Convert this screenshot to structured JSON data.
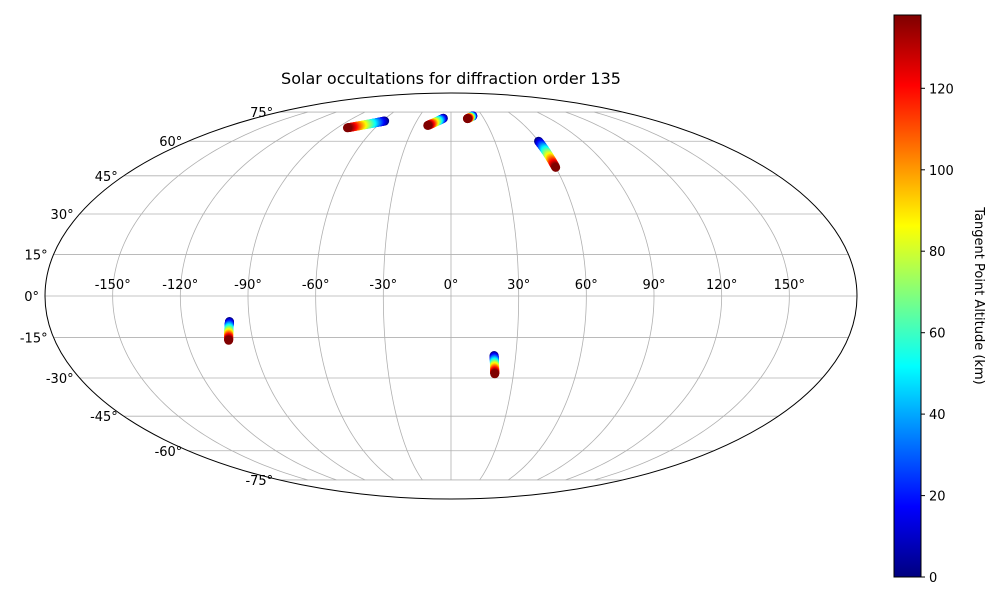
{
  "chart_data": {
    "type": "scatter",
    "projection": "mollweide",
    "title": "Solar occultations for diffraction order 135",
    "longitude_ticks": [
      "-150°",
      "-120°",
      "-90°",
      "-60°",
      "-30°",
      "0°",
      "30°",
      "60°",
      "90°",
      "120°",
      "150°"
    ],
    "latitude_ticks": [
      "-75°",
      "-60°",
      "-45°",
      "-30°",
      "-15°",
      "0°",
      "15°",
      "30°",
      "45°",
      "60°",
      "75°"
    ],
    "grid": true,
    "colormap": "jet",
    "colorbar": {
      "label": "Tangent Point Altitude (km)",
      "range": [
        0,
        138
      ],
      "ticks": [
        "0",
        "20",
        "40",
        "60",
        "80",
        "100",
        "120"
      ]
    },
    "tracks": [
      {
        "lon_start": -82,
        "lat_start": 66.5,
        "lon_end": -58,
        "lat_end": 70.0
      },
      {
        "lon_start": -19,
        "lat_start": 67.7,
        "lon_end": -7,
        "lat_end": 71.5
      },
      {
        "lon_start": 15,
        "lat_start": 71.3,
        "lon_end": 21,
        "lat_end": 72.8
      },
      {
        "lon_start": 60,
        "lat_start": 48.5,
        "lon_end": 60,
        "lat_end": 60.0
      },
      {
        "lon_start": -101,
        "lat_start": -16.0,
        "lon_end": -99,
        "lat_end": -9.2
      },
      {
        "lon_start": 21,
        "lat_start": -28.4,
        "lon_end": 20,
        "lat_end": -21.6
      }
    ],
    "altitude_range": [
      0,
      138
    ]
  }
}
